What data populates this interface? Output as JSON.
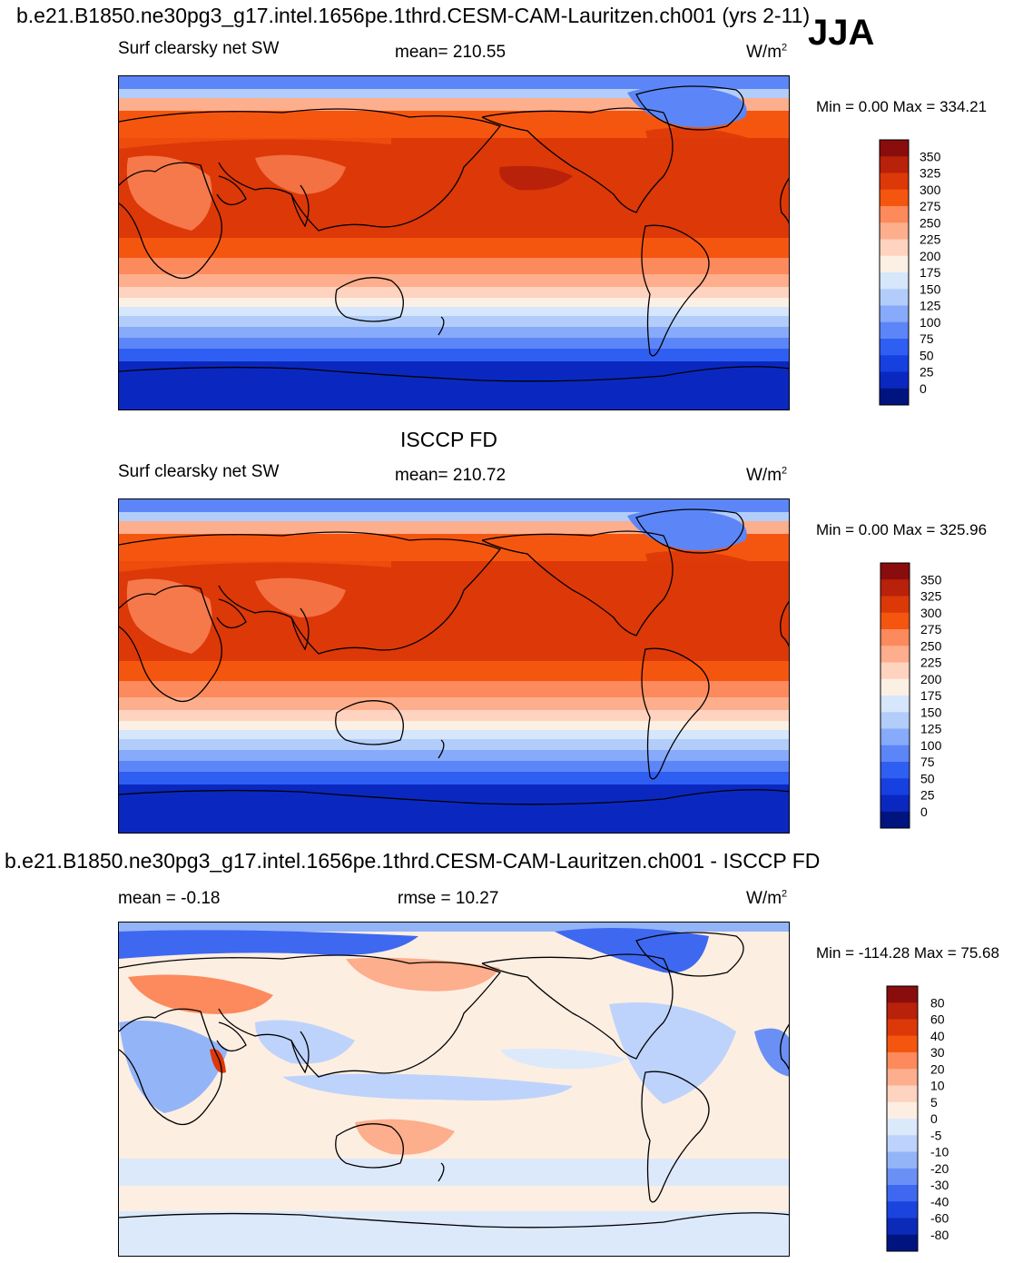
{
  "main_title": "b.e21.B1850.ne30pg3_g17.intel.1656pe.1thrd.CESM-CAM-Lauritzen.ch001 (yrs 2-11)",
  "season": "JJA",
  "diff_title": "b.e21.B1850.ne30pg3_g17.intel.1656pe.1thrd.CESM-CAM-Lauritzen.ch001 - ISCCP FD",
  "obs_title": "ISCCP FD",
  "chart_data": [
    {
      "type": "heatmap",
      "name": "model",
      "variable": "Surf clearsky net SW",
      "mean_label": "mean= 210.55",
      "units_base": "W/m",
      "units_exp": "2",
      "minmax": "Min =   0.00 Max = 334.21",
      "min": 0.0,
      "max": 334.21,
      "levels": [
        "350",
        "325",
        "300",
        "275",
        "250",
        "225",
        "200",
        "175",
        "150",
        "125",
        "100",
        "75",
        "50",
        "25",
        "0"
      ],
      "colors": [
        "#8a0d0d",
        "#b8210a",
        "#dd3808",
        "#f5560f",
        "#fc8a5c",
        "#fdae8c",
        "#fed3bf",
        "#fcf0e4",
        "#d6e6fb",
        "#b3cdfb",
        "#87aafa",
        "#5c86f7",
        "#2f5ef3",
        "#1640e0",
        "#0a28c0",
        "#001480"
      ]
    },
    {
      "type": "heatmap",
      "name": "obs",
      "variable": "Surf clearsky net SW",
      "mean_label": "mean= 210.72",
      "units_base": "W/m",
      "units_exp": "2",
      "minmax": "Min =   0.00 Max = 325.96",
      "min": 0.0,
      "max": 325.96,
      "levels": [
        "350",
        "325",
        "300",
        "275",
        "250",
        "225",
        "200",
        "175",
        "150",
        "125",
        "100",
        "75",
        "50",
        "25",
        "0"
      ],
      "colors": [
        "#8a0d0d",
        "#b8210a",
        "#dd3808",
        "#f5560f",
        "#fc8a5c",
        "#fdae8c",
        "#fed3bf",
        "#fcf0e4",
        "#d6e6fb",
        "#b3cdfb",
        "#87aafa",
        "#5c86f7",
        "#2f5ef3",
        "#1640e0",
        "#0a28c0",
        "#001480"
      ]
    },
    {
      "type": "heatmap",
      "name": "difference",
      "mean_label": "mean =  -0.18",
      "rmse_label": "rmse =  10.27",
      "units_base": "W/m",
      "units_exp": "2",
      "minmax": "Min = -114.28 Max =  75.68",
      "min": -114.28,
      "max": 75.68,
      "levels": [
        "80",
        "60",
        "40",
        "30",
        "20",
        "10",
        "5",
        "0",
        "-5",
        "-10",
        "-20",
        "-30",
        "-40",
        "-60",
        "-80"
      ],
      "colors": [
        "#8a0d0d",
        "#b8210a",
        "#dd3808",
        "#f5560f",
        "#fc8a5c",
        "#fdae8c",
        "#fed3bf",
        "#fdeee2",
        "#dce9fb",
        "#bdd3fb",
        "#94b4f8",
        "#6b90f5",
        "#3e68f0",
        "#1a44dd",
        "#0b2ab8",
        "#001480"
      ]
    }
  ]
}
